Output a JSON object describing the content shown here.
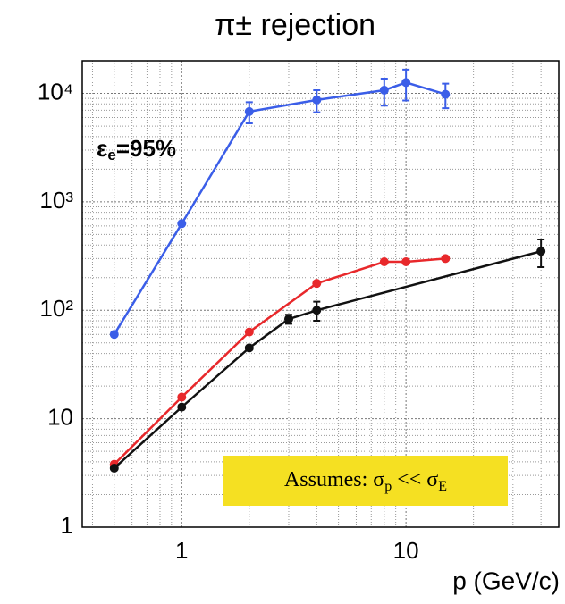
{
  "chart_data": {
    "type": "line",
    "title": "π± rejection",
    "xlabel": "p (GeV/c)",
    "xscale": "log",
    "yscale": "log",
    "xlim": [
      0.36,
      48
    ],
    "ylim": [
      1,
      20000
    ],
    "xticks": [
      1,
      10
    ],
    "xminorticks": [
      0.4,
      0.5,
      0.6,
      0.7,
      0.8,
      0.9,
      2,
      3,
      4,
      5,
      6,
      7,
      8,
      9,
      20,
      30,
      40
    ],
    "yticks": [
      1,
      10,
      {
        "value": 100,
        "label": "10²"
      },
      {
        "value": 1000,
        "label": "10³"
      },
      {
        "value": 10000,
        "label": "10⁴"
      }
    ],
    "yminorticks": [
      2,
      3,
      4,
      5,
      6,
      7,
      8,
      9,
      20,
      30,
      40,
      50,
      60,
      70,
      80,
      90,
      200,
      300,
      400,
      500,
      600,
      700,
      800,
      900,
      2000,
      3000,
      4000,
      5000,
      6000,
      7000,
      8000,
      9000
    ],
    "grid": true,
    "annotation": [
      "ε",
      "e",
      "=95%"
    ],
    "note": [
      "Assumes: σ",
      "p",
      " << σ",
      "E"
    ],
    "series": [
      {
        "color": "#3b5ee8",
        "x": [
          0.5,
          1,
          2,
          4,
          8,
          10,
          15
        ],
        "values": [
          60,
          630,
          6800,
          8700,
          10700,
          12600,
          9800
        ],
        "errors": [
          null,
          null,
          1500,
          2000,
          3000,
          4000,
          2500
        ]
      },
      {
        "color": "#e8282b",
        "x": [
          0.5,
          1,
          2,
          4,
          8,
          10,
          15
        ],
        "values": [
          3.8,
          15.8,
          63,
          177,
          280,
          280,
          300
        ]
      },
      {
        "color": "#111111",
        "x": [
          0.5,
          1,
          2,
          3,
          4,
          40
        ],
        "values": [
          3.5,
          12.8,
          45,
          83,
          100,
          350
        ],
        "errors": [
          null,
          null,
          null,
          8,
          20,
          100
        ]
      }
    ]
  }
}
